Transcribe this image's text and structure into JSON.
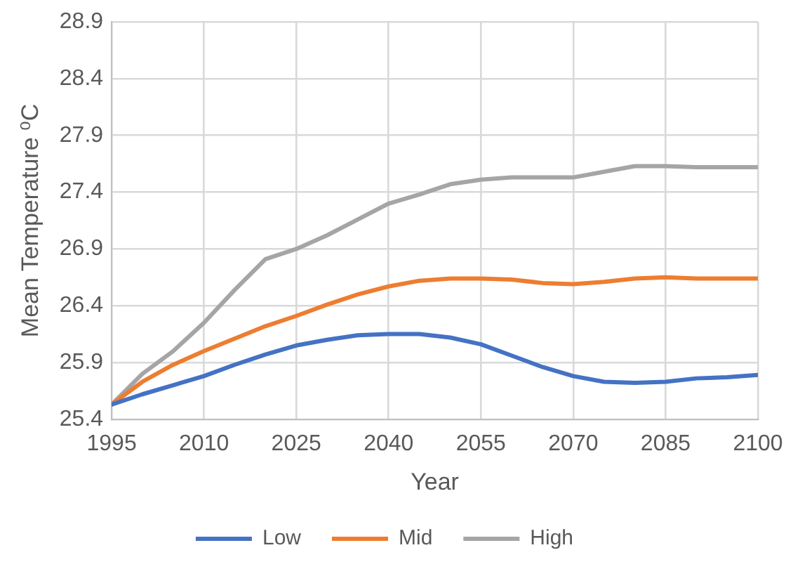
{
  "chart_data": {
    "type": "line",
    "xlabel": "Year",
    "ylabel": "Mean Temperature ⁰C",
    "x": [
      1995,
      2000,
      2005,
      2010,
      2015,
      2020,
      2025,
      2030,
      2035,
      2040,
      2045,
      2050,
      2055,
      2060,
      2065,
      2070,
      2075,
      2080,
      2085,
      2090,
      2095,
      2100
    ],
    "series": [
      {
        "name": "Low",
        "color": "#4472c4",
        "values": [
          25.53,
          25.62,
          25.7,
          25.78,
          25.88,
          25.97,
          26.05,
          26.1,
          26.14,
          26.15,
          26.15,
          26.12,
          26.06,
          25.96,
          25.86,
          25.78,
          25.73,
          25.72,
          25.73,
          25.76,
          25.77,
          25.79
        ]
      },
      {
        "name": "Mid",
        "color": "#ed7d31",
        "values": [
          25.53,
          25.73,
          25.88,
          26.0,
          26.11,
          26.22,
          26.31,
          26.41,
          26.5,
          26.57,
          26.62,
          26.64,
          26.64,
          26.63,
          26.6,
          26.59,
          26.61,
          26.64,
          26.65,
          26.64,
          26.64,
          26.64
        ]
      },
      {
        "name": "High",
        "color": "#a5a5a5",
        "values": [
          25.53,
          25.8,
          26.0,
          26.25,
          26.54,
          26.81,
          26.9,
          27.02,
          27.16,
          27.3,
          27.38,
          27.47,
          27.51,
          27.53,
          27.53,
          27.53,
          27.58,
          27.63,
          27.63,
          27.62,
          27.62,
          27.62
        ]
      }
    ],
    "xlim": [
      1995,
      2100
    ],
    "xticks": [
      1995,
      2010,
      2025,
      2040,
      2055,
      2070,
      2085,
      2100
    ],
    "ylim": [
      25.4,
      28.9
    ],
    "yticks": [
      25.4,
      25.9,
      26.4,
      26.9,
      27.4,
      27.9,
      28.4,
      28.9
    ],
    "grid": true,
    "legend": "bottom",
    "marker": "none",
    "line_style": "solid"
  }
}
